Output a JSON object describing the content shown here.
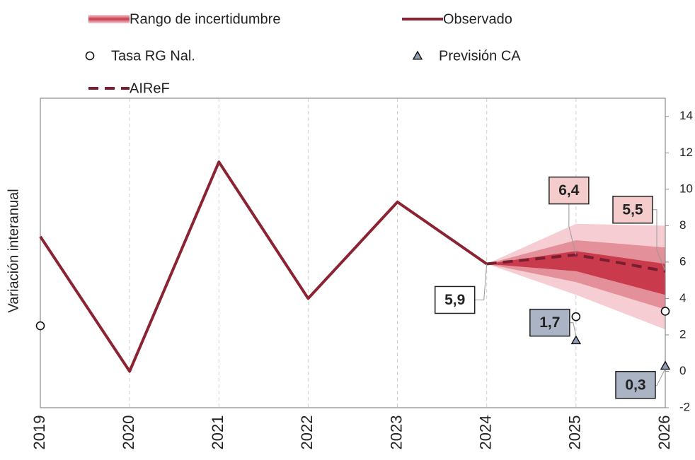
{
  "chart_data": {
    "type": "line",
    "ylabel": "Variación interanual",
    "categories": [
      "2019",
      "2020",
      "2021",
      "2022",
      "2023",
      "2024",
      "2025",
      "2026"
    ],
    "ylim": [
      -2,
      15
    ],
    "yticks": [
      -2,
      0,
      2,
      4,
      6,
      8,
      10,
      12,
      14
    ],
    "y_axis_side": "right",
    "grid": "x-dashed",
    "bands": {
      "name": "Rango de incertidumbre",
      "levels": [
        {
          "color": "#f6cdd2",
          "lower": [
            null,
            null,
            null,
            null,
            null,
            5.9,
            4.2,
            2.3
          ],
          "upper": [
            null,
            null,
            null,
            null,
            null,
            5.9,
            8.1,
            8.0
          ]
        },
        {
          "color": "#e3909b",
          "lower": [
            null,
            null,
            null,
            null,
            null,
            5.9,
            4.9,
            3.4
          ],
          "upper": [
            null,
            null,
            null,
            null,
            null,
            5.9,
            7.2,
            6.8
          ]
        },
        {
          "color": "#c83a4c",
          "lower": [
            null,
            null,
            null,
            null,
            null,
            5.9,
            5.5,
            4.2
          ],
          "upper": [
            null,
            null,
            null,
            null,
            null,
            5.9,
            6.6,
            5.9
          ]
        }
      ]
    },
    "series": [
      {
        "name": "Observado",
        "kind": "line",
        "color": "#8b2332",
        "values": [
          7.4,
          0,
          11.5,
          4.0,
          9.3,
          5.9,
          null,
          null
        ]
      },
      {
        "name": "Tasa RG Nal.",
        "kind": "circle",
        "color": "#ffffff",
        "values": [
          2.5,
          null,
          null,
          null,
          null,
          null,
          3.0,
          3.3
        ]
      },
      {
        "name": "Previsión CA",
        "kind": "triangle",
        "color": "#8d9db3",
        "values": [
          null,
          null,
          null,
          null,
          null,
          null,
          1.7,
          0.3
        ],
        "value_labels": [
          null,
          null,
          null,
          null,
          null,
          null,
          "1,7",
          "0,3"
        ],
        "label_fill": "#aab4c4"
      },
      {
        "name": "AIReF",
        "kind": "dashed",
        "color": "#7a1d30",
        "values": [
          null,
          null,
          null,
          null,
          null,
          5.9,
          6.4,
          5.5
        ],
        "value_labels": [
          null,
          null,
          null,
          null,
          null,
          "5,9",
          "6,4",
          "5,5"
        ],
        "label_fills": [
          null,
          null,
          null,
          null,
          null,
          "#ffffff",
          "#f4cccc",
          "#f4cccc"
        ]
      }
    ]
  }
}
